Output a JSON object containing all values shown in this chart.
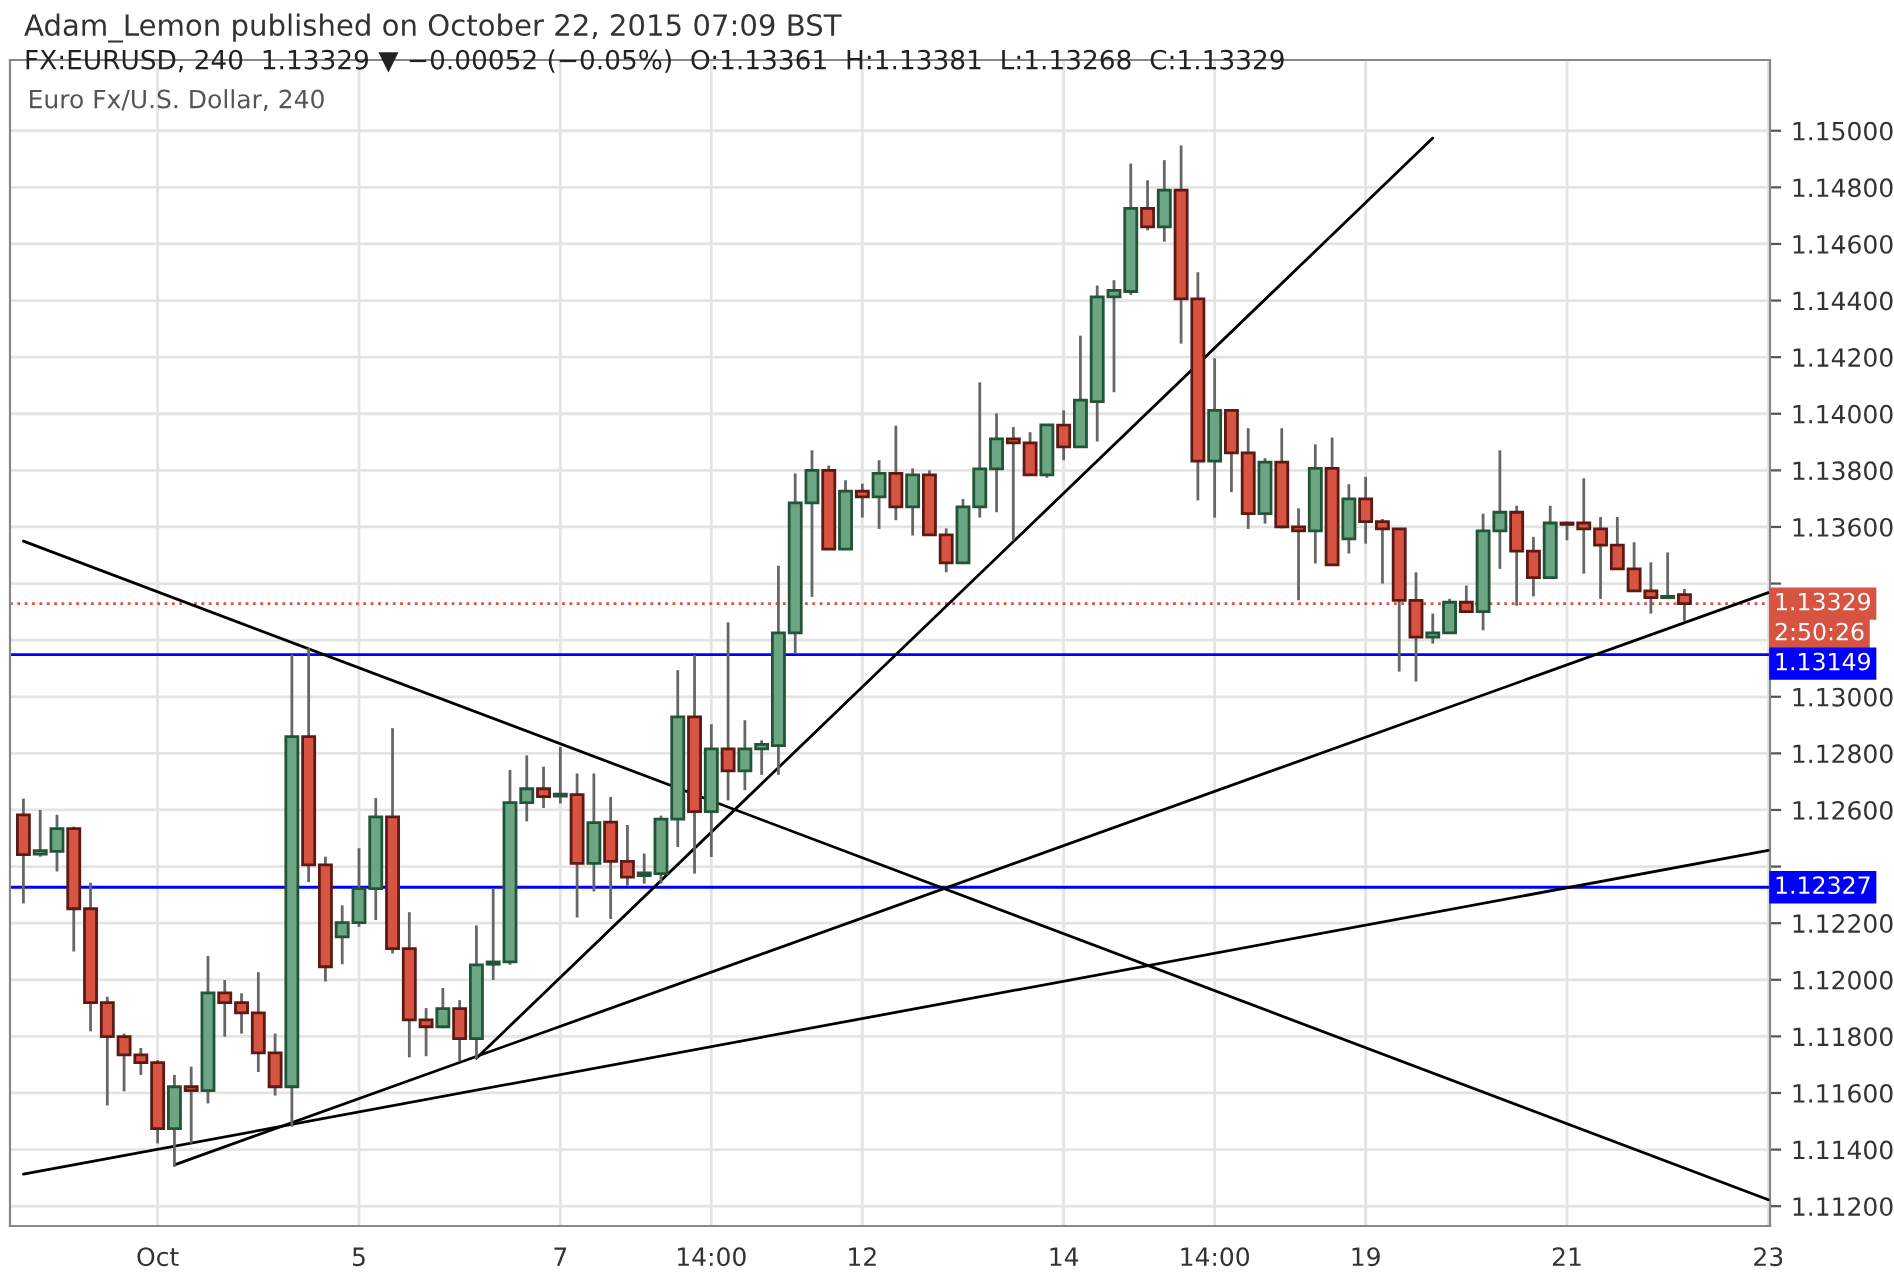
{
  "chart_data": {
    "type": "candlestick",
    "title": "Adam_Lemon published on October 22, 2015 07:09 BST",
    "subtitle": "FX:EURUSD, 240  1.13329 ▼ −0.00052 (−0.05%)  O:1.13361  H:1.13381  L:1.13268  C:1.13329",
    "categories": [
      null,
      null,
      null,
      null,
      null,
      null,
      null,
      null,
      "Oct",
      null,
      null,
      null,
      null,
      null,
      null,
      null,
      null,
      null,
      null,
      null,
      "5",
      null,
      null,
      null,
      null,
      null,
      null,
      null,
      null,
      null,
      null,
      null,
      "7",
      null,
      null,
      null,
      null,
      null,
      null,
      null,
      null,
      "14:00",
      null,
      null,
      null,
      null,
      null,
      null,
      null,
      null,
      "12",
      null,
      null,
      null,
      null,
      null,
      null,
      null,
      null,
      null,
      null,
      null,
      "14",
      null,
      null,
      null,
      null,
      null,
      null,
      null,
      null,
      "14:00",
      null,
      null,
      null,
      null,
      null,
      null,
      null,
      null,
      "19",
      null,
      null,
      null,
      null,
      null,
      null,
      null,
      null,
      null,
      null,
      null,
      "21",
      null,
      null,
      null,
      null,
      null,
      null,
      null,
      null,
      null,
      null,
      null,
      "23"
    ],
    "ohlc": [
      [
        1.12583,
        1.1264,
        1.1227,
        1.12442
      ],
      [
        1.12444,
        1.126,
        1.12435,
        1.12456
      ],
      [
        1.12454,
        1.12583,
        1.12383,
        1.12534
      ],
      [
        1.12534,
        1.12541,
        1.121,
        1.12251
      ],
      [
        1.12251,
        1.12343,
        1.11818,
        1.11919
      ],
      [
        1.11919,
        1.1194,
        1.11556,
        1.11799
      ],
      [
        1.11799,
        1.1181,
        1.11606,
        1.11735
      ],
      [
        1.11735,
        1.11759,
        1.11664,
        1.11707
      ],
      [
        1.11707,
        1.11716,
        1.11422,
        1.11474
      ],
      [
        1.11474,
        1.11664,
        1.11339,
        1.11622
      ],
      [
        1.11622,
        1.11693,
        1.11422,
        1.11608
      ],
      [
        1.11608,
        1.12084,
        1.11563,
        1.11954
      ],
      [
        1.11954,
        1.11999,
        1.11799,
        1.11919
      ],
      [
        1.11919,
        1.11952,
        1.1181,
        1.11883
      ],
      [
        1.11883,
        1.12027,
        1.11674,
        1.11742
      ],
      [
        1.11742,
        1.1181,
        1.11591,
        1.11622
      ],
      [
        1.11622,
        1.13149,
        1.11481,
        1.12859
      ],
      [
        1.12859,
        1.13172,
        1.12345,
        1.12406
      ],
      [
        1.12406,
        1.12435,
        1.11994,
        1.12046
      ],
      [
        1.12152,
        1.12263,
        1.12055,
        1.12202
      ],
      [
        1.12202,
        1.12465,
        1.12187,
        1.12322
      ],
      [
        1.12322,
        1.12642,
        1.12211,
        1.12576
      ],
      [
        1.12576,
        1.12889,
        1.12093,
        1.1211
      ],
      [
        1.1211,
        1.12239,
        1.11726,
        1.11858
      ],
      [
        1.11858,
        1.119,
        1.1173,
        1.11834
      ],
      [
        1.11834,
        1.11971,
        1.11829,
        1.11898
      ],
      [
        1.11898,
        1.11928,
        1.11712,
        1.11792
      ],
      [
        1.11792,
        1.12192,
        1.11721,
        1.12053
      ],
      [
        1.12055,
        1.12322,
        1.11999,
        1.12063
      ],
      [
        1.12063,
        1.12741,
        1.12053,
        1.12626
      ],
      [
        1.12626,
        1.12793,
        1.1256,
        1.12675
      ],
      [
        1.12675,
        1.12753,
        1.12607,
        1.12647
      ],
      [
        1.12649,
        1.12823,
        1.12623,
        1.12656
      ],
      [
        1.12654,
        1.12729,
        1.1222,
        1.12411
      ],
      [
        1.12411,
        1.12729,
        1.12312,
        1.12555
      ],
      [
        1.12557,
        1.12646,
        1.12215,
        1.12418
      ],
      [
        1.12418,
        1.12547,
        1.12333,
        1.12363
      ],
      [
        1.12368,
        1.12446,
        1.1234,
        1.12378
      ],
      [
        1.12375,
        1.1258,
        1.1234,
        1.12568
      ],
      [
        1.12568,
        1.13094,
        1.12469,
        1.12929
      ],
      [
        1.12929,
        1.13148,
        1.12375,
        1.12594
      ],
      [
        1.12594,
        1.12903,
        1.12434,
        1.12816
      ],
      [
        1.12816,
        1.13263,
        1.12634,
        1.12738
      ],
      [
        1.12738,
        1.12917,
        1.1267,
        1.12816
      ],
      [
        1.12816,
        1.12846,
        1.12724,
        1.12832
      ],
      [
        1.12827,
        1.13463,
        1.12724,
        1.13226
      ],
      [
        1.13226,
        1.13789,
        1.13153,
        1.13685
      ],
      [
        1.13685,
        1.13871,
        1.13353,
        1.138
      ],
      [
        1.138,
        1.13817,
        1.13522,
        1.13522
      ],
      [
        1.13522,
        1.13765,
        1.13522,
        1.13727
      ],
      [
        1.13727,
        1.13753,
        1.13633,
        1.13706
      ],
      [
        1.13706,
        1.13836,
        1.13593,
        1.13789
      ],
      [
        1.13789,
        1.13958,
        1.13624,
        1.13671
      ],
      [
        1.13671,
        1.13807,
        1.1357,
        1.13784
      ],
      [
        1.13784,
        1.138,
        1.13572,
        1.13572
      ],
      [
        1.13572,
        1.13595,
        1.1344,
        1.13473
      ],
      [
        1.13473,
        1.13699,
        1.13473,
        1.13671
      ],
      [
        1.13671,
        1.14111,
        1.13633,
        1.13805
      ],
      [
        1.13805,
        1.14001,
        1.13652,
        1.13911
      ],
      [
        1.13911,
        1.13953,
        1.13553,
        1.13897
      ],
      [
        1.13897,
        1.13935,
        1.13784,
        1.13784
      ],
      [
        1.13784,
        1.13961,
        1.13774,
        1.13961
      ],
      [
        1.1396,
        1.14012,
        1.13836,
        1.13883
      ],
      [
        1.13883,
        1.14276,
        1.13883,
        1.14048
      ],
      [
        1.14043,
        1.14453,
        1.13902,
        1.14413
      ],
      [
        1.14413,
        1.14472,
        1.14076,
        1.14436
      ],
      [
        1.14432,
        1.14884,
        1.1442,
        1.14726
      ],
      [
        1.14726,
        1.14825,
        1.14648,
        1.1466
      ],
      [
        1.1466,
        1.14896,
        1.14608,
        1.1479
      ],
      [
        1.1479,
        1.14948,
        1.14248,
        1.14406
      ],
      [
        1.14406,
        1.145,
        1.13694,
        1.13833
      ],
      [
        1.13833,
        1.14196,
        1.13633,
        1.14012
      ],
      [
        1.14012,
        1.14012,
        1.13723,
        1.13862
      ],
      [
        1.13862,
        1.13949,
        1.13593,
        1.13647
      ],
      [
        1.13647,
        1.13843,
        1.13612,
        1.13829
      ],
      [
        1.13829,
        1.13949,
        1.13595,
        1.136
      ],
      [
        1.136,
        1.13666,
        1.13341,
        1.13586
      ],
      [
        1.13586,
        1.13892,
        1.13471,
        1.13807
      ],
      [
        1.13807,
        1.13916,
        1.13466,
        1.13466
      ],
      [
        1.13558,
        1.13751,
        1.13506,
        1.13699
      ],
      [
        1.13699,
        1.13777,
        1.13541,
        1.13619
      ],
      [
        1.13619,
        1.13628,
        1.134,
        1.13593
      ],
      [
        1.13593,
        1.13595,
        1.13089,
        1.13341
      ],
      [
        1.13341,
        1.1344,
        1.13054,
        1.13211
      ],
      [
        1.13211,
        1.13294,
        1.13188,
        1.13226
      ],
      [
        1.13226,
        1.13346,
        1.13223,
        1.13334
      ],
      [
        1.13334,
        1.13393,
        1.13301,
        1.13301
      ],
      [
        1.13301,
        1.13647,
        1.13235,
        1.13586
      ],
      [
        1.13586,
        1.13871,
        1.13452,
        1.13652
      ],
      [
        1.13652,
        1.13675,
        1.13322,
        1.13515
      ],
      [
        1.13515,
        1.13565,
        1.13355,
        1.13421
      ],
      [
        1.13421,
        1.13675,
        1.13421,
        1.13614
      ],
      [
        1.13614,
        1.13619,
        1.13553,
        1.13609
      ],
      [
        1.13614,
        1.13772,
        1.13435,
        1.13593
      ],
      [
        1.13593,
        1.13635,
        1.13346,
        1.13536
      ],
      [
        1.13536,
        1.13635,
        1.13452,
        1.13452
      ],
      [
        1.13452,
        1.13546,
        1.13374,
        1.13374
      ],
      [
        1.13374,
        1.13475,
        1.13294,
        1.1335
      ],
      [
        1.1335,
        1.1351,
        1.1335,
        1.13355
      ],
      [
        1.13361,
        1.13381,
        1.13268,
        1.13329
      ],
      null,
      null,
      null,
      null,
      null
    ],
    "series": [
      {
        "type": "line",
        "color": "#000000",
        "values": [
          1.1355,
          null,
          null,
          null,
          null,
          null,
          null,
          null,
          null,
          null,
          null,
          null,
          null,
          null,
          null,
          null,
          null,
          null,
          null,
          null,
          null,
          null,
          null,
          null,
          null,
          null,
          null,
          null,
          null,
          null,
          null,
          null,
          null,
          null,
          null,
          null,
          null,
          null,
          null,
          null,
          null,
          null,
          null,
          null,
          null,
          null,
          null,
          null,
          null,
          null,
          null,
          null,
          null,
          null,
          null,
          null,
          null,
          null,
          null,
          null,
          null,
          null,
          null,
          null,
          null,
          null,
          null,
          null,
          null,
          null,
          null,
          null,
          null,
          null,
          null,
          null,
          null,
          null,
          null,
          null,
          null,
          null,
          null,
          null,
          null,
          null,
          null,
          null,
          null,
          null,
          null,
          null,
          null,
          null,
          null,
          null,
          null,
          null,
          null,
          null,
          null,
          null,
          null,
          null,
          1.11223
        ]
      },
      {
        "type": "line",
        "color": "#000000",
        "values": [
          null,
          null,
          null,
          null,
          null,
          null,
          null,
          null,
          null,
          null,
          null,
          null,
          null,
          null,
          null,
          null,
          null,
          null,
          null,
          null,
          null,
          null,
          null,
          null,
          null,
          null,
          null,
          1.11723,
          null,
          null,
          null,
          null,
          null,
          null,
          null,
          null,
          null,
          null,
          null,
          null,
          null,
          null,
          null,
          null,
          null,
          null,
          null,
          null,
          null,
          null,
          null,
          null,
          null,
          null,
          null,
          null,
          null,
          null,
          null,
          null,
          null,
          null,
          null,
          null,
          null,
          null,
          null,
          null,
          null,
          null,
          null,
          null,
          null,
          null,
          null,
          null,
          null,
          null,
          null,
          null,
          null,
          null,
          null,
          null,
          1.14974,
          null,
          null,
          null,
          null,
          null,
          null,
          null,
          null,
          null,
          null,
          null,
          null,
          null,
          null,
          null,
          null,
          null,
          null,
          null,
          null
        ]
      },
      {
        "type": "line",
        "color": "#000000",
        "values": [
          1.11313,
          null,
          null,
          null,
          null,
          null,
          null,
          null,
          null,
          null,
          null,
          null,
          null,
          null,
          null,
          null,
          null,
          null,
          null,
          null,
          null,
          null,
          null,
          null,
          null,
          null,
          null,
          null,
          null,
          null,
          null,
          null,
          null,
          null,
          null,
          null,
          null,
          null,
          null,
          null,
          null,
          null,
          null,
          null,
          null,
          null,
          null,
          null,
          null,
          null,
          null,
          null,
          null,
          null,
          null,
          null,
          null,
          null,
          null,
          null,
          null,
          null,
          null,
          null,
          null,
          null,
          null,
          null,
          null,
          null,
          null,
          null,
          null,
          null,
          null,
          null,
          null,
          null,
          null,
          null,
          null,
          null,
          null,
          null,
          null,
          null,
          null,
          null,
          null,
          null,
          null,
          null,
          null,
          null,
          null,
          null,
          null,
          null,
          null,
          null,
          null,
          null,
          null,
          null,
          1.12457
        ]
      },
      {
        "type": "line",
        "color": "#000000",
        "values": [
          null,
          null,
          null,
          null,
          null,
          null,
          null,
          null,
          null,
          1.11346,
          null,
          null,
          null,
          null,
          null,
          null,
          null,
          null,
          null,
          null,
          null,
          null,
          null,
          null,
          null,
          null,
          null,
          null,
          null,
          null,
          null,
          null,
          null,
          null,
          null,
          null,
          null,
          null,
          null,
          null,
          null,
          null,
          null,
          null,
          null,
          null,
          null,
          null,
          null,
          null,
          null,
          null,
          null,
          null,
          null,
          null,
          null,
          null,
          null,
          null,
          null,
          null,
          null,
          null,
          null,
          null,
          null,
          null,
          null,
          null,
          null,
          null,
          null,
          null,
          null,
          null,
          null,
          null,
          null,
          null,
          null,
          null,
          null,
          null,
          null,
          null,
          null,
          null,
          null,
          null,
          null,
          null,
          null,
          null,
          null,
          null,
          null,
          null,
          null,
          null,
          null,
          null,
          null,
          null,
          1.13368
        ]
      }
    ],
    "ylim": [
      1.1113,
      1.1525
    ],
    "yticks": [
      {
        "value": 1.112,
        "label": "1.11200"
      },
      {
        "value": 1.114,
        "label": "1.11400"
      },
      {
        "value": 1.116,
        "label": "1.11600"
      },
      {
        "value": 1.118,
        "label": "1.11800"
      },
      {
        "value": 1.12,
        "label": "1.12000"
      },
      {
        "value": 1.122,
        "label": "1.12200"
      },
      {
        "value": 1.124,
        "label": null
      },
      {
        "value": 1.126,
        "label": "1.12600"
      },
      {
        "value": 1.128,
        "label": "1.12800"
      },
      {
        "value": 1.13,
        "label": "1.13000"
      },
      {
        "value": 1.132,
        "label": null
      },
      {
        "value": 1.134,
        "label": null
      },
      {
        "value": 1.136,
        "label": "1.13600"
      },
      {
        "value": 1.138,
        "label": "1.13800"
      },
      {
        "value": 1.14,
        "label": "1.14000"
      },
      {
        "value": 1.142,
        "label": "1.14200"
      },
      {
        "value": 1.144,
        "label": "1.14400"
      },
      {
        "value": 1.146,
        "label": "1.14600"
      },
      {
        "value": 1.148,
        "label": "1.14800"
      },
      {
        "value": 1.15,
        "label": "1.15000"
      }
    ],
    "ref_lines": [
      {
        "axis": "y",
        "value": 1.13329,
        "label": "1.13329",
        "color": "#d75442",
        "line_style": "dotted"
      },
      {
        "axis": "y",
        "value": 1.13149,
        "label": "1.13149",
        "color": "#0000ff",
        "line_style": "solid"
      },
      {
        "axis": "y",
        "value": 1.12327,
        "label": "1.12327",
        "color": "#0000ff",
        "line_style": "solid"
      }
    ],
    "annotations": [
      "Euro Fx/U.S. Dollar, 240",
      "2:50:26"
    ],
    "grid": true
  }
}
